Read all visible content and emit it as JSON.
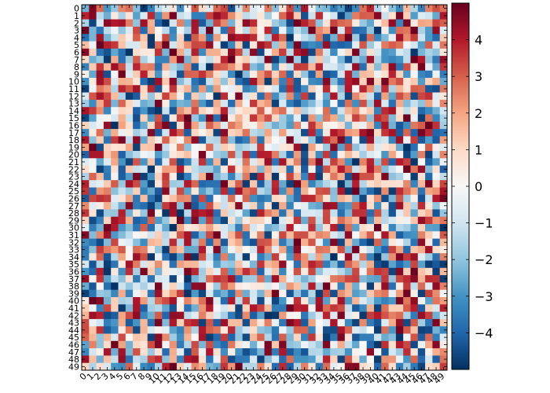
{
  "chart_data": {
    "type": "heatmap",
    "rows": 50,
    "cols": 50,
    "x_tick_labels": [
      "0",
      "1",
      "2",
      "3",
      "4",
      "5",
      "6",
      "7",
      "8",
      "9",
      "10",
      "11",
      "12",
      "13",
      "14",
      "15",
      "16",
      "17",
      "18",
      "19",
      "20",
      "21",
      "22",
      "23",
      "24",
      "25",
      "26",
      "27",
      "28",
      "29",
      "30",
      "31",
      "32",
      "33",
      "34",
      "35",
      "36",
      "37",
      "38",
      "39",
      "40",
      "41",
      "42",
      "43",
      "44",
      "45",
      "46",
      "47",
      "48",
      "49"
    ],
    "y_tick_labels": [
      "0",
      "1",
      "2",
      "3",
      "4",
      "5",
      "6",
      "7",
      "8",
      "9",
      "10",
      "11",
      "12",
      "13",
      "14",
      "15",
      "16",
      "17",
      "18",
      "19",
      "20",
      "21",
      "22",
      "23",
      "24",
      "25",
      "26",
      "27",
      "28",
      "29",
      "30",
      "31",
      "32",
      "33",
      "34",
      "35",
      "36",
      "37",
      "38",
      "39",
      "40",
      "41",
      "42",
      "43",
      "44",
      "45",
      "46",
      "47",
      "48",
      "49"
    ],
    "value_range": [
      -5,
      5
    ],
    "colormap": "RdBu_r",
    "colormap_stops": [
      "#053061",
      "#2166ac",
      "#4393c3",
      "#92c5de",
      "#d1e5f0",
      "#f7f7f7",
      "#fddbc7",
      "#f4a582",
      "#d6604d",
      "#b2182b",
      "#67001f"
    ],
    "colorbar": {
      "ticks": [
        -4,
        -3,
        -2,
        -1,
        0,
        1,
        2,
        3,
        4
      ],
      "tick_labels": [
        "−4",
        "−3",
        "−2",
        "−1",
        "0",
        "1",
        "2",
        "3",
        "4"
      ]
    },
    "values": "uniform random values in [-5, 5] (50 x 50 grid) — generated below with a fixed seed"
  }
}
